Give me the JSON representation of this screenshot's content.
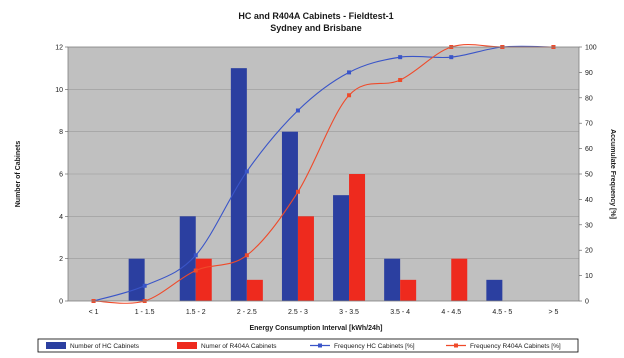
{
  "chart_data": {
    "type": "bar",
    "title": "HC and R404A Cabinets - Fieldtest-1",
    "subtitle": "Sydney and Brisbane",
    "xlabel": "Energy Consumption Interval [kWh/24h]",
    "ylabel": "Number of Cabinets",
    "y2label": "Accumulate Frequency [%]",
    "ylim": [
      0,
      12
    ],
    "y2lim": [
      0,
      100
    ],
    "yticks": [
      "0",
      "2",
      "4",
      "6",
      "8",
      "10",
      "12"
    ],
    "y2ticks": [
      "0",
      "10",
      "20",
      "30",
      "40",
      "50",
      "60",
      "70",
      "80",
      "90",
      "100"
    ],
    "grid": true,
    "legend_position": "bottom",
    "categories": [
      "< 1",
      "1 - 1.5",
      "1.5 - 2",
      "2 - 2.5",
      "2.5 - 3",
      "3 - 3.5",
      "3.5 - 4",
      "4 - 4.5",
      "4.5 - 5",
      "> 5"
    ],
    "series": [
      {
        "name": "Number of HC Cabinets",
        "kind": "bar",
        "axis": "left",
        "color": "#2b3fa0",
        "values": [
          0,
          2,
          4,
          11,
          8,
          5,
          2,
          0,
          1,
          0
        ]
      },
      {
        "name": "Numer of R404A Cabinets",
        "kind": "bar",
        "axis": "left",
        "color": "#ee2a1e",
        "values": [
          0,
          0,
          2,
          1,
          4,
          6,
          1,
          2,
          0,
          0
        ]
      },
      {
        "name": "Frequency HC Cabinets [%]",
        "kind": "line",
        "axis": "right",
        "color": "#3a55c8",
        "values": [
          0,
          6,
          18,
          51,
          75,
          90,
          96,
          96,
          100,
          100
        ]
      },
      {
        "name": "Frequency R404A Cabinets [%]",
        "kind": "line",
        "axis": "right",
        "color": "#ef4a2a",
        "values": [
          0,
          0,
          12,
          18,
          43,
          81,
          87,
          100,
          100,
          100
        ]
      }
    ]
  }
}
